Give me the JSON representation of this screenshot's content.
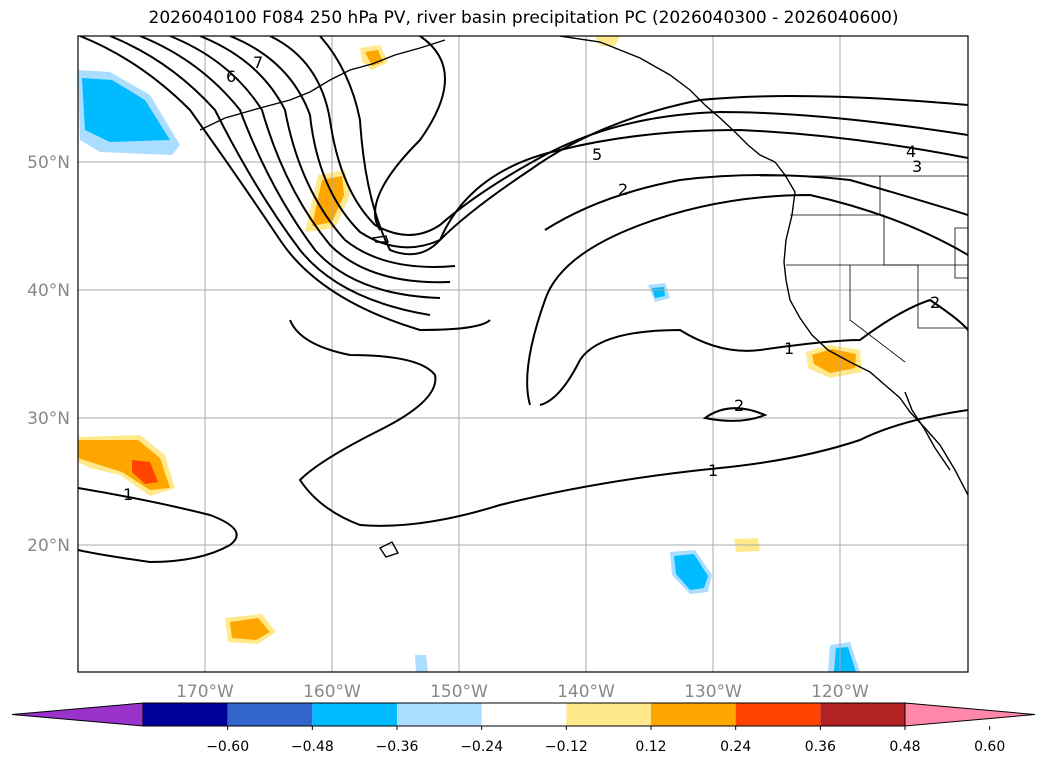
{
  "title": "2026040100 F084 250 hPa PV, river basin precipitation PC (2026040300 - 2026040600)",
  "latitudes": [
    {
      "label": "50°N",
      "value": 50
    },
    {
      "label": "40°N",
      "value": 40
    },
    {
      "label": "30°N",
      "value": 30
    },
    {
      "label": "20°N",
      "value": 20
    }
  ],
  "longitudes": [
    {
      "label": "170°W",
      "value": -170
    },
    {
      "label": "160°W",
      "value": -160
    },
    {
      "label": "150°W",
      "value": -150
    },
    {
      "label": "140°W",
      "value": -140
    },
    {
      "label": "130°W",
      "value": -130
    },
    {
      "label": "120°W",
      "value": -120
    }
  ],
  "contour_labels": [
    "7",
    "6",
    "5",
    "2",
    "4",
    "3",
    "1",
    "2",
    "1",
    "1",
    "2"
  ],
  "colorbar": {
    "colors": [
      "#9933cc",
      "#000099",
      "#3366cc",
      "#00bbff",
      "#aaddff",
      "#ffffff",
      "#ffe98a",
      "#ffa500",
      "#ff4400",
      "#b22222",
      "#ff88aa"
    ],
    "ticks": [
      "−0.60",
      "−0.48",
      "−0.36",
      "−0.24",
      "−0.12",
      "0.12",
      "0.24",
      "0.36",
      "0.48",
      "0.60"
    ]
  }
}
